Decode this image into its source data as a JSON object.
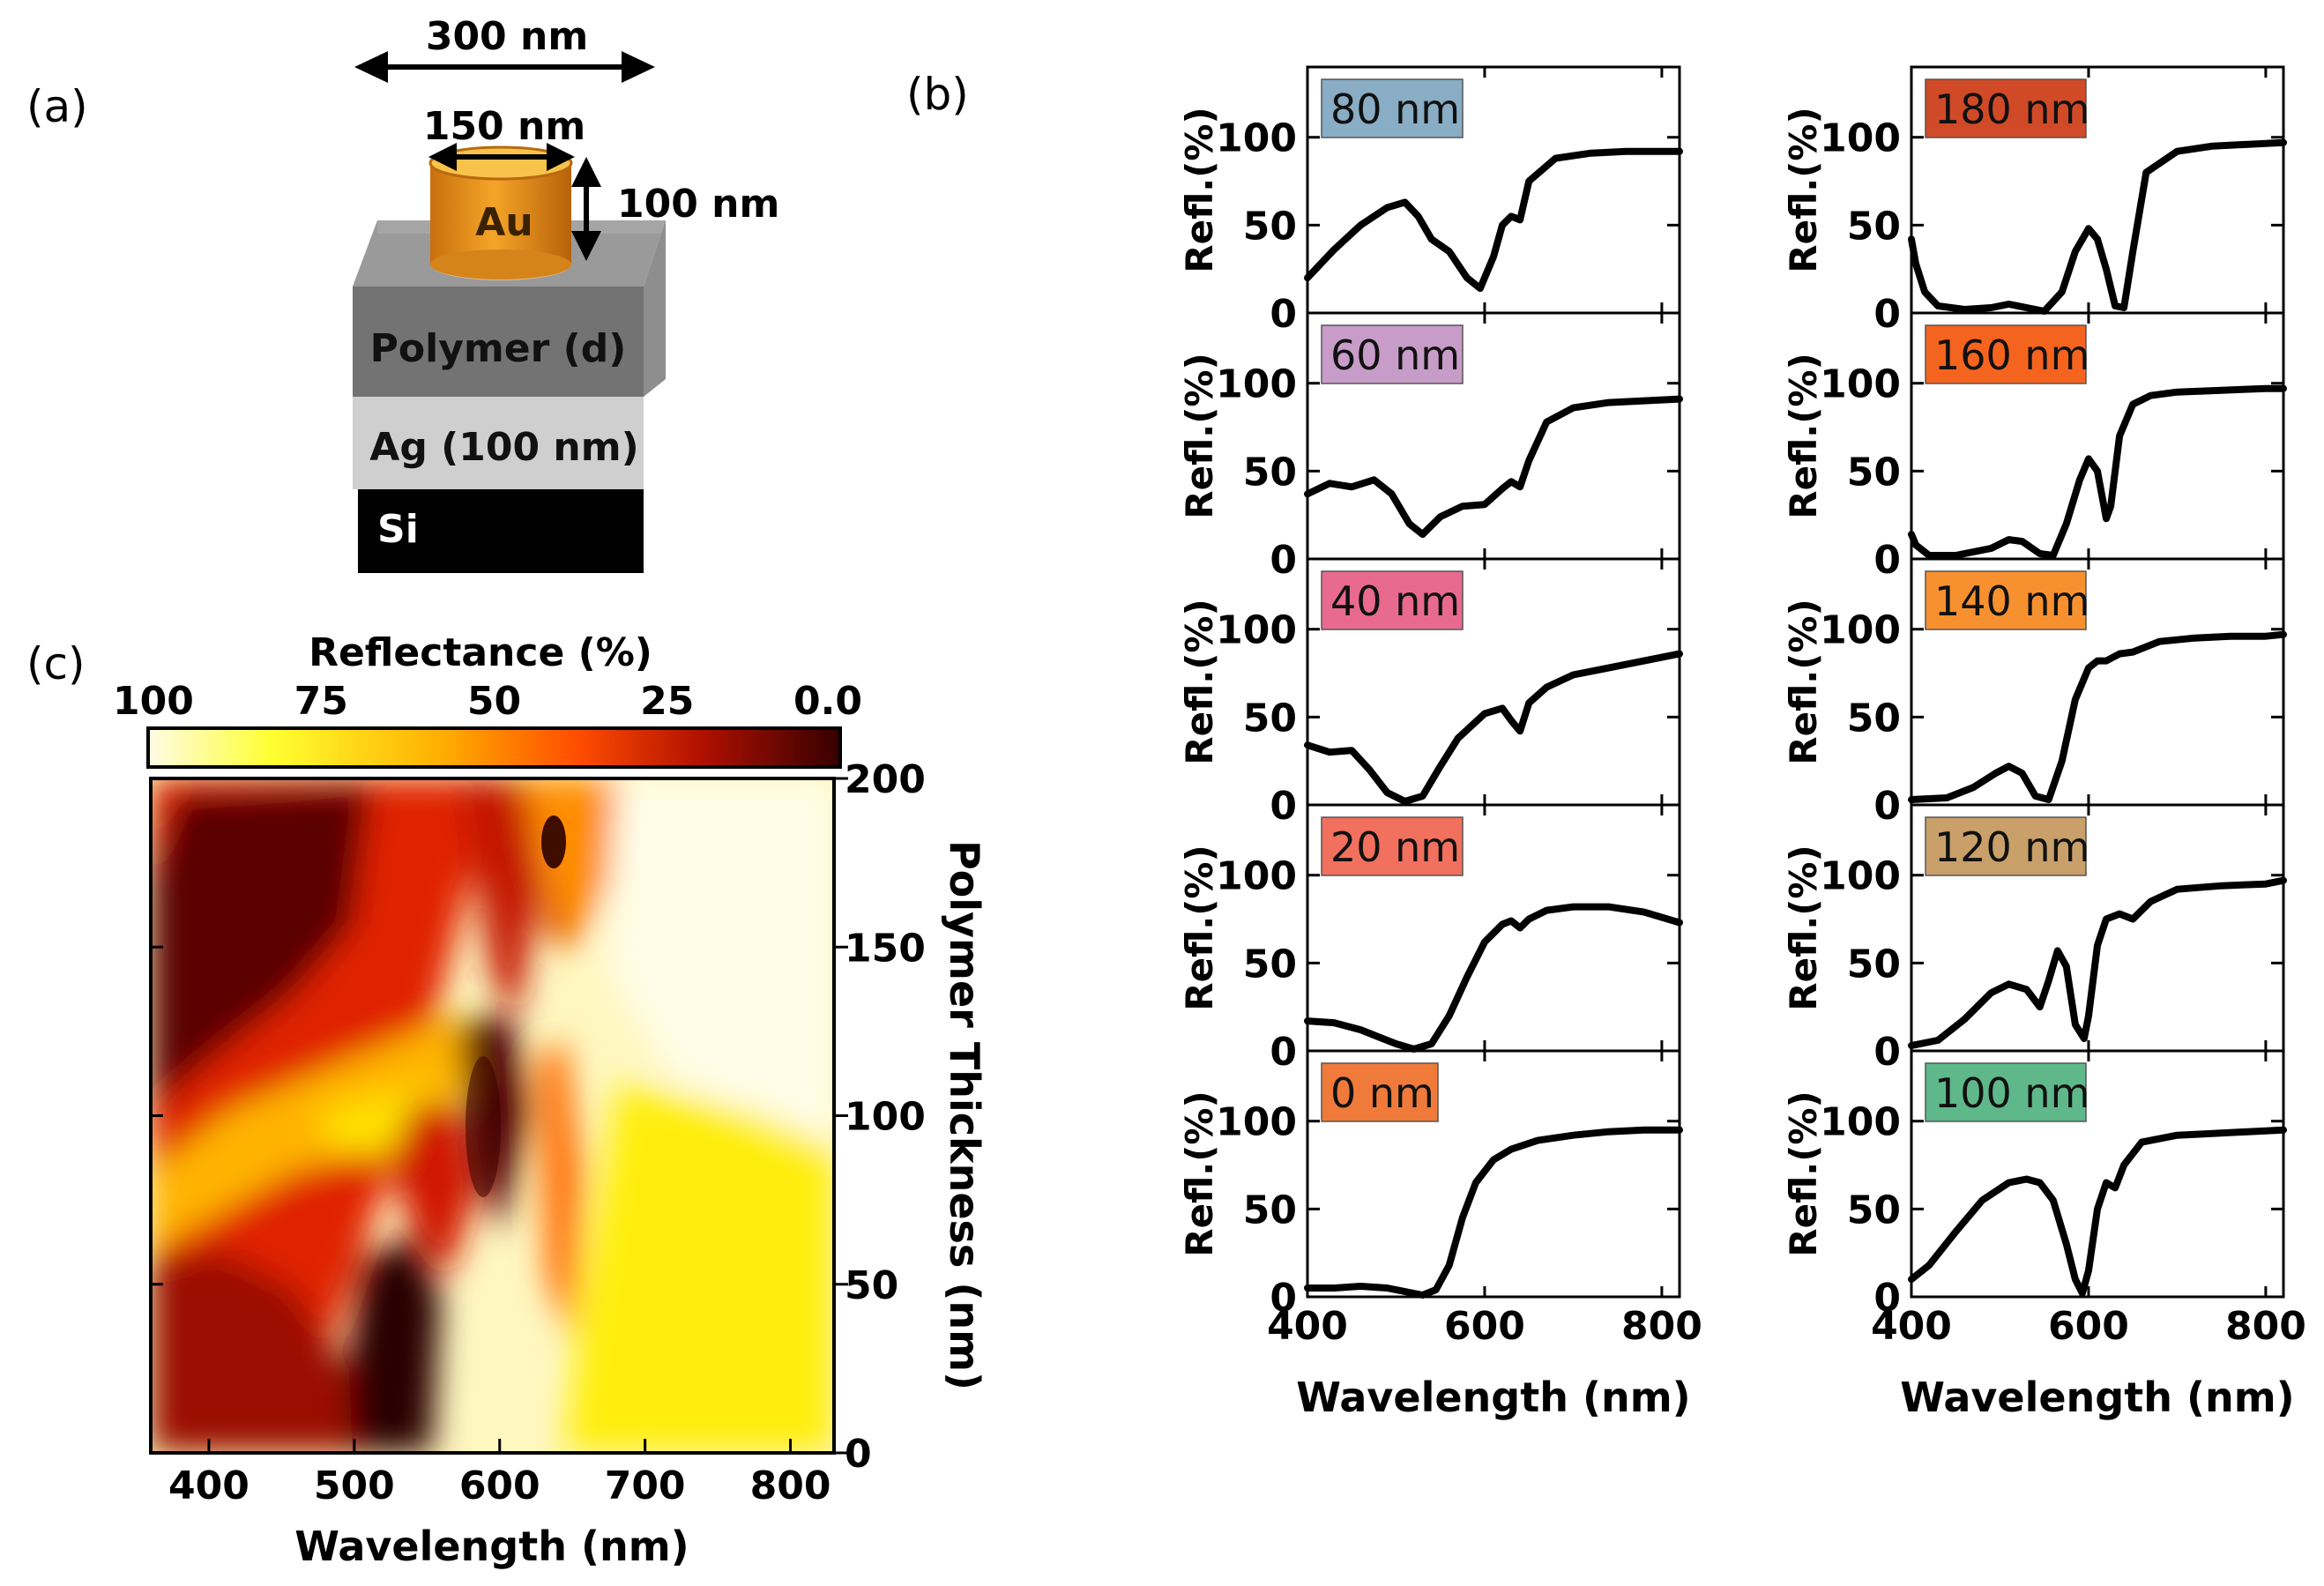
{
  "panel_labels": {
    "a": "(a)",
    "b": "(b)",
    "c": "(c)"
  },
  "schematic": {
    "dim_period": "300 nm",
    "dim_diameter": "150 nm",
    "dim_height": "100 nm",
    "au_label": "Au",
    "polymer_label": "Polymer (d)",
    "ag_label": "Ag (100 nm)",
    "si_label": "Si",
    "colors": {
      "au": "#e8921c",
      "polymer": "#7a7a7a",
      "ag": "#c8c8c8",
      "si": "#000000"
    }
  },
  "chart_data": [
    {
      "type": "line",
      "id": "panel-b-left",
      "xlabel": "Wavelength (nm)",
      "ylabel": "Refl.(%)",
      "xlim": [
        400,
        820
      ],
      "ylim": [
        0,
        140
      ],
      "xticks": [
        400,
        600,
        800
      ],
      "yticks": [
        0,
        50,
        100
      ],
      "series": [
        {
          "name": "80 nm",
          "label_color": "#88adc4",
          "x": [
            400,
            430,
            460,
            490,
            510,
            525,
            540,
            560,
            580,
            595,
            610,
            620,
            630,
            640,
            650,
            680,
            720,
            760,
            800,
            820
          ],
          "y": [
            20,
            36,
            50,
            60,
            63,
            55,
            42,
            35,
            20,
            14,
            32,
            50,
            55,
            53,
            75,
            88,
            91,
            92,
            92,
            92
          ]
        },
        {
          "name": "60 nm",
          "label_color": "#c89cc8",
          "x": [
            400,
            425,
            450,
            475,
            495,
            515,
            530,
            550,
            575,
            600,
            620,
            630,
            640,
            650,
            670,
            700,
            740,
            780,
            820
          ],
          "y": [
            37,
            43,
            41,
            45,
            37,
            20,
            14,
            24,
            30,
            31,
            40,
            44,
            41,
            56,
            78,
            86,
            89,
            90,
            91
          ]
        },
        {
          "name": "40 nm",
          "label_color": "#e86a8f",
          "x": [
            400,
            425,
            450,
            470,
            490,
            510,
            530,
            550,
            570,
            600,
            620,
            630,
            640,
            650,
            670,
            700,
            740,
            780,
            820
          ],
          "y": [
            34,
            30,
            31,
            20,
            7,
            2,
            5,
            22,
            38,
            52,
            55,
            48,
            42,
            58,
            67,
            74,
            78,
            82,
            86
          ]
        },
        {
          "name": "20 nm",
          "label_color": "#f2705e",
          "x": [
            400,
            430,
            460,
            480,
            500,
            520,
            540,
            560,
            580,
            600,
            620,
            630,
            640,
            650,
            670,
            700,
            740,
            780,
            820
          ],
          "y": [
            17,
            16,
            12,
            8,
            4,
            1,
            4,
            20,
            42,
            62,
            72,
            74,
            70,
            75,
            80,
            82,
            82,
            79,
            73
          ]
        },
        {
          "name": "0 nm",
          "label_color": "#f07a3a",
          "x": [
            400,
            430,
            460,
            490,
            510,
            530,
            545,
            560,
            575,
            590,
            610,
            630,
            660,
            700,
            740,
            780,
            820
          ],
          "y": [
            5,
            5,
            6,
            5,
            3,
            1,
            4,
            18,
            45,
            65,
            78,
            84,
            89,
            92,
            94,
            95,
            95
          ]
        }
      ]
    },
    {
      "type": "line",
      "id": "panel-b-right",
      "xlabel": "Wavelength (nm)",
      "ylabel": "Refl.(%)",
      "xlim": [
        400,
        820
      ],
      "ylim": [
        0,
        140
      ],
      "xticks": [
        400,
        600,
        800
      ],
      "yticks": [
        0,
        50,
        100
      ],
      "series": [
        {
          "name": "180 nm",
          "label_color": "#d14a27",
          "x": [
            400,
            405,
            415,
            430,
            460,
            490,
            510,
            530,
            550,
            570,
            585,
            600,
            610,
            620,
            630,
            640,
            650,
            665,
            700,
            740,
            780,
            820
          ],
          "y": [
            42,
            28,
            12,
            4,
            2,
            3,
            5,
            3,
            1,
            12,
            35,
            48,
            42,
            25,
            4,
            3,
            35,
            80,
            92,
            95,
            96,
            97
          ]
        },
        {
          "name": "160 nm",
          "label_color": "#f5641e",
          "x": [
            400,
            405,
            420,
            450,
            490,
            510,
            525,
            545,
            560,
            575,
            590,
            600,
            610,
            620,
            625,
            635,
            650,
            670,
            700,
            750,
            800,
            820
          ],
          "y": [
            14,
            8,
            2,
            2,
            6,
            11,
            10,
            3,
            2,
            20,
            45,
            57,
            50,
            23,
            30,
            70,
            88,
            93,
            95,
            96,
            97,
            97
          ]
        },
        {
          "name": "140 nm",
          "label_color": "#f79130",
          "x": [
            400,
            440,
            470,
            495,
            510,
            525,
            540,
            555,
            570,
            585,
            600,
            610,
            620,
            635,
            650,
            680,
            720,
            760,
            800,
            820
          ],
          "y": [
            3,
            4,
            10,
            18,
            22,
            18,
            5,
            3,
            25,
            60,
            78,
            82,
            82,
            86,
            87,
            93,
            95,
            96,
            96,
            97
          ]
        },
        {
          "name": "120 nm",
          "label_color": "#c9a06a",
          "x": [
            400,
            430,
            460,
            490,
            510,
            530,
            545,
            555,
            565,
            575,
            585,
            595,
            600,
            610,
            620,
            635,
            650,
            670,
            700,
            750,
            800,
            820
          ],
          "y": [
            3,
            6,
            18,
            33,
            38,
            35,
            25,
            40,
            57,
            48,
            15,
            7,
            20,
            60,
            75,
            78,
            75,
            85,
            92,
            94,
            95,
            97
          ]
        },
        {
          "name": "100 nm",
          "label_color": "#5fb88a",
          "x": [
            400,
            420,
            450,
            480,
            510,
            530,
            545,
            560,
            575,
            585,
            593,
            600,
            610,
            620,
            630,
            640,
            660,
            700,
            740,
            780,
            820
          ],
          "y": [
            10,
            18,
            37,
            55,
            65,
            67,
            65,
            55,
            30,
            10,
            2,
            15,
            50,
            65,
            62,
            75,
            88,
            92,
            93,
            94,
            95
          ]
        }
      ]
    },
    {
      "type": "heatmap",
      "id": "panel-c",
      "title": "Reflectance (%)",
      "xlabel": "Wavelength (nm)",
      "ylabel": "Polymer Thickness (nm)",
      "xlim": [
        360,
        830
      ],
      "ylim": [
        0,
        200
      ],
      "xticks": [
        400,
        500,
        600,
        700,
        800
      ],
      "yticks": [
        0,
        50,
        100,
        150,
        200
      ],
      "colorbar_ticks": [
        "100",
        "75",
        "50",
        "25",
        "0.0"
      ],
      "colorbar_range": [
        100,
        0
      ],
      "colormap": [
        "#fffbe6",
        "#ffff30",
        "#ffb000",
        "#ff4d00",
        "#b01000",
        "#350000"
      ]
    }
  ]
}
